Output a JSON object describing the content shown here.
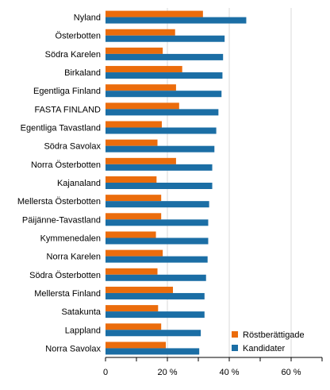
{
  "chart_data": {
    "type": "bar",
    "orientation": "horizontal",
    "categories": [
      "Nyland",
      "Österbotten",
      "Södra Karelen",
      "Birkaland",
      "Egentliga Finland",
      "FASTA FINLAND",
      "Egentliga Tavastland",
      "Södra Savolax",
      "Norra Österbotten",
      "Kajanaland",
      "Mellersta Österbotten",
      "Päijänne-Tavastland",
      "Kymmenedalen",
      "Norra Karelen",
      "Södra Österbotten",
      "Mellersta Finland",
      "Satakunta",
      "Lappland",
      "Norra Savolax"
    ],
    "series": [
      {
        "name": "Röstberättigade",
        "color": "#eb6c0c",
        "values": [
          31.5,
          22.5,
          18.5,
          24.8,
          22.8,
          23.8,
          18.2,
          16.8,
          22.8,
          16.5,
          18.0,
          18.0,
          16.3,
          18.5,
          16.8,
          21.8,
          17.0,
          18.0,
          19.5
        ]
      },
      {
        "name": "Kandidater",
        "color": "#1b6ea5",
        "values": [
          45.5,
          38.5,
          38.0,
          37.8,
          37.5,
          36.5,
          35.8,
          35.2,
          34.5,
          34.5,
          33.5,
          33.2,
          33.2,
          33.0,
          32.5,
          32.0,
          32.0,
          30.8,
          30.3
        ]
      }
    ],
    "xlim": [
      0,
      70
    ],
    "xticks": [
      0,
      20,
      40,
      60
    ],
    "xtick_labels": [
      "0",
      "20 %",
      "40 %",
      "60 %"
    ],
    "grid": true,
    "legend_position": "bottom-right",
    "title": "",
    "xlabel": "",
    "ylabel": ""
  }
}
